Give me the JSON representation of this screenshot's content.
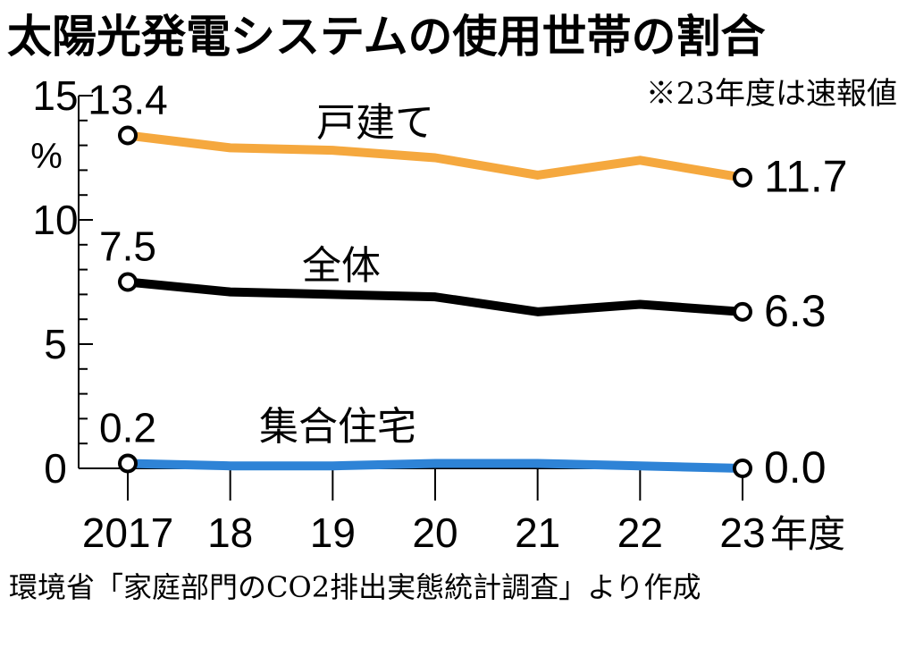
{
  "chart_data": {
    "type": "line",
    "title": "太陽光発電システムの使用世帯の割合",
    "note": "※23年度は速報値",
    "source": "環境省「家庭部門のCO2排出実態統計調査」より作成",
    "x": [
      "2017",
      "18",
      "19",
      "20",
      "21",
      "22",
      "23"
    ],
    "xunit": "年度",
    "yunit": "%",
    "ylim": [
      0,
      15
    ],
    "yticks": [
      0,
      5,
      10,
      15
    ],
    "grid": false,
    "series": [
      {
        "name": "戸建て",
        "color": "#f5a83e",
        "values": [
          13.4,
          12.9,
          12.8,
          12.5,
          11.8,
          12.4,
          11.7
        ],
        "start_label": "13.4",
        "end_label": "11.7"
      },
      {
        "name": "全体",
        "color": "#000000",
        "values": [
          7.5,
          7.1,
          7.0,
          6.9,
          6.3,
          6.6,
          6.3
        ],
        "start_label": "7.5",
        "end_label": "6.3"
      },
      {
        "name": "集合住宅",
        "color": "#2e83d6",
        "values": [
          0.2,
          0.1,
          0.1,
          0.2,
          0.2,
          0.1,
          0.0
        ],
        "start_label": "0.2",
        "end_label": "0.0"
      }
    ]
  }
}
